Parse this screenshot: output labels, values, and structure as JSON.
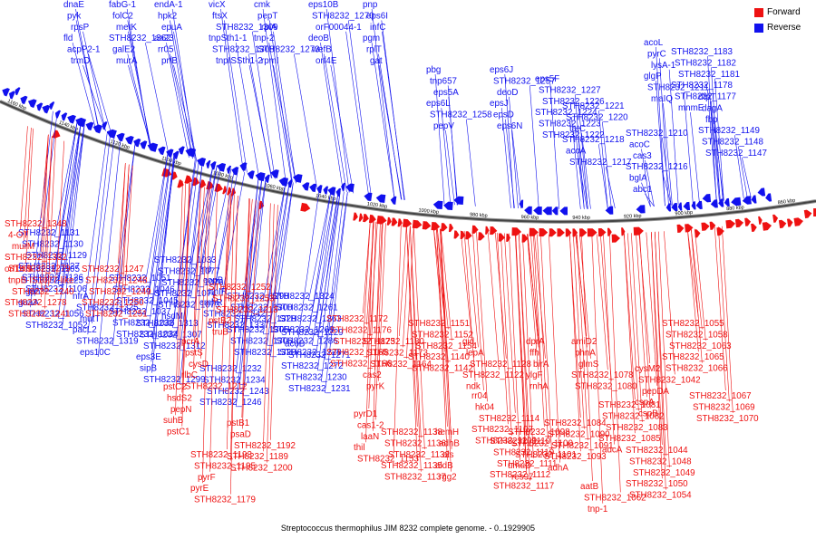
{
  "legend": {
    "forward_label": "Forward",
    "reverse_label": "Reverse",
    "forward_color": "#ee1111",
    "reverse_color": "#1111ee"
  },
  "caption": "Streptococcus thermophilus JIM 8232 complete genome. - 0..1929905",
  "axis": {
    "ticks": [
      "1160 kbp",
      "1140 kbp",
      "1120 kbp",
      "1100 kbp",
      "1080 kbp",
      "1060 kbp",
      "1040 kbp",
      "1020 kbp",
      "1000 kbp",
      "980 kbp",
      "960 kbp",
      "940 kbp",
      "920 kbp",
      "900 kbp",
      "880 kbp",
      "860 kbp"
    ]
  },
  "reverse_genes": [
    "dnaE",
    "pyk",
    "rpsP",
    "fld",
    "acpP2-1",
    "trmD",
    "fabG-1",
    "folC2",
    "metK",
    "STH8232_1362",
    "galE2",
    "murA",
    "endA-1",
    "hpk2",
    "epuA",
    "aa23",
    "rr05",
    "prfB",
    "vicX",
    "ftsX",
    "STH8232_1309",
    "tnpSth1-1",
    "STH8232_1308",
    "tnpISSth1-2",
    "cmk",
    "pepT",
    "rpiA",
    "tnp-2",
    "STH8232_1273",
    "rpmI",
    "eps10B",
    "STH8232_1270",
    "orF00044-1",
    "deoB",
    "wefB",
    "orf4E",
    "pnp",
    "eps6I",
    "infC",
    "pgm",
    "rplT",
    "gat",
    "pbg",
    "tnp657",
    "eps5A",
    "eps6L",
    "STH8232_1258",
    "pepV",
    "eps6J",
    "STH8232_1257",
    "deoD",
    "epsJ",
    "epsD",
    "eps6N",
    "eps5F",
    "STH8232_1227",
    "STH8232_1226",
    "STH8232_1224",
    "STH8232_1223",
    "STH8232_1222",
    "STH8232_1221",
    "STH8232_1220",
    "tatC",
    "STH8232_1218",
    "acoA",
    "STH8232_1217",
    "STH8232_1210",
    "acoC",
    "cas3",
    "STH8232_1216",
    "bglA",
    "abc1",
    "acoL",
    "pyrC",
    "lysA-1",
    "glgP",
    "STH8232_1211",
    "maIQ",
    "STH8232_1183",
    "STH8232_1182",
    "STH8232_1181",
    "STH8232_1178",
    "STH8232_1177",
    "mnmE",
    "dtpT",
    "dagA",
    "fbp",
    "STH8232_1149",
    "STH8232_1148",
    "STH8232_1147",
    "STH8232_1131",
    "STH8232_1130",
    "STH8232_1129",
    "STH8232_1127",
    "STH8232_1126",
    "STH8232_1106",
    "STH8232_1105",
    "STH8232_1125",
    "gph",
    "guaA",
    "STH8232_1056",
    "STH8232_1052",
    "STH8232_1051",
    "STH8232_1046",
    "STH8232_1045",
    "STH8232_1037",
    "STH8232_1036",
    "STH8232_1034",
    "STH8232_1033",
    "STH8232_1077",
    "STH8232_1076",
    "STH8232_1074",
    "STH8232_1073",
    "hsdM",
    "tnp",
    "copB",
    "sthIR",
    "cmhR",
    "STH8232_1342",
    "STH8232_1337",
    "nfrA",
    "STH8232_1325",
    "mutT",
    "pacL2",
    "STH8232_1319",
    "eps10C",
    "STH8232_1313",
    "STH8232_1307",
    "STH8232_1312",
    "eps3E",
    "sipB",
    "STH8232_1299",
    "STH8232_1298",
    "STH8232_1300",
    "STH8232_1328",
    "STH8232_1305",
    "STH8232_1306",
    "STH8232_1320",
    "STH8232_1324",
    "STH8232_1261",
    "STH8232_1263",
    "STH8232_1269",
    "STH8232_1286",
    "STH8232_1228",
    "STH8232_1229",
    "acoB",
    "STH8232_1271",
    "STH8232_1272",
    "STH8232_1230",
    "STH8232_1231",
    "STH8232_1232",
    "STH8232_1234",
    "STH8232_1243",
    "STH8232_1246"
  ],
  "forward_genes": [
    "STH8232_1348",
    "4-OT",
    "murM",
    "STH8232_1332",
    "STH8232_1279",
    "orf14.9",
    "tnpB-IS1077-like",
    "STH8232_1240",
    "STH8232_1278",
    "STH8232_1241",
    "STH8232_1247",
    "STH8232_1248",
    "STH8232_1249",
    "STH8232_1250",
    "STH8232_1251",
    "STH8232_1252",
    "STH8232_1253",
    "STH8232_1213",
    "pstB2",
    "truB",
    "pcrA",
    "pstS",
    "cysD",
    "rlbC",
    "STH8232_1212",
    "pstC2",
    "hsdS2",
    "pepN",
    "suhB",
    "pstC1",
    "pstB1",
    "psaD",
    "STH8232_1192",
    "STH8232_1189",
    "STH8232_1200",
    "STH8232_1193",
    "STH8232_1195",
    "pyrF",
    "pyrE",
    "STH8232_1179",
    "STH8232_1172",
    "STH8232_1176",
    "STH8232_1175",
    "STH8232_1165",
    "STH8232_1166",
    "STH8232_1180",
    "STH8232_1173",
    "STH8232_1164",
    "cas2",
    "pyrK",
    "pyrD1",
    "cas1-2",
    "laaN",
    "thil",
    "STH8232_1153",
    "STH8232_1151",
    "STH8232_1152",
    "STH8232_1154",
    "STH8232_1140",
    "STH8232_1142",
    "STH8232_1138",
    "STH8232_1136",
    "STH8232_1132",
    "STH8232_1135",
    "STH8232_1137",
    "hemH",
    "adhB",
    "als",
    "aldB",
    "rgg2",
    "gid",
    "lepA",
    "STH8232_1128",
    "STH8232_1122",
    "ndk",
    "rr04",
    "hk04",
    "STH8232_1114",
    "STH8232_1107",
    "STH8232_1109",
    "STH8232_1110",
    "STH8232_1119",
    "STH8232_1111",
    "STH8232_1112",
    "STH8232_1117",
    "dprA",
    "ffh",
    "birA",
    "ylgF",
    "rnhA",
    "STH8232_1098",
    "STH8232_1100",
    "STH8232_1101",
    "umuD",
    "res97",
    "STH8232_1084",
    "STH8232_1090",
    "STH8232_1091",
    "STH8232_1093",
    "adhA",
    "amiD2",
    "phnA",
    "glmS",
    "STH8232_1078",
    "STH8232_1080",
    "STH8232_1081",
    "STH8232_1082",
    "STH8232_1083",
    "STH8232_1085",
    "adcA",
    "aatB",
    "STH8232_1062",
    "tnp-1",
    "metB2",
    "cysE",
    "cysM2",
    "STH8232_1042",
    "pepDA",
    "cspA",
    "cspB",
    "STH8232_1044",
    "STH8232_1048",
    "STH8232_1049",
    "STH8232_1050",
    "STH8232_1054",
    "STH8232_1055",
    "STH8232_1058",
    "STH8232_1063",
    "STH8232_1065",
    "STH8232_1066",
    "STH8232_1067",
    "STH8232_1069",
    "STH8232_1070"
  ]
}
